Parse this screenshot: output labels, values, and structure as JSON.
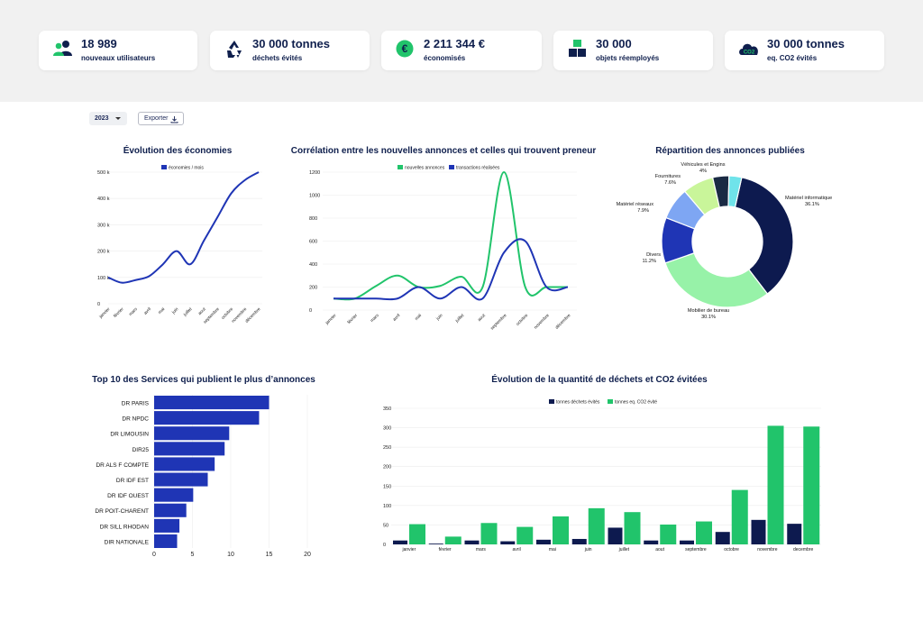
{
  "kpis": [
    {
      "value": "18 989",
      "label": "nouveaux utilisateurs",
      "icon": "users-icon"
    },
    {
      "value": "30 000 tonnes",
      "label": "déchets évités",
      "icon": "recycle-icon"
    },
    {
      "value": "2 211 344 €",
      "label": "économisés",
      "icon": "euro-icon"
    },
    {
      "value": "30 000",
      "label": "objets réemployés",
      "icon": "boxes-icon"
    },
    {
      "value": "30 000 tonnes",
      "label": "eq. CO2 évités",
      "icon": "co2-cloud-icon"
    }
  ],
  "controls": {
    "year": "2023",
    "export_label": "Exporter"
  },
  "colors": {
    "navy": "#0f1f4d",
    "blue": "#1f35b5",
    "green": "#21c46b",
    "dark_navy": "#0d1a4f",
    "light_green": "#97f2a8"
  },
  "chart_data": [
    {
      "type": "line",
      "title": "Évolution des économies",
      "categories": [
        "janvier",
        "février",
        "mars",
        "avril",
        "mai",
        "juin",
        "juillet",
        "aout",
        "septembre",
        "octobre",
        "novembre",
        "décembre"
      ],
      "series": [
        {
          "name": "économies / mois",
          "values": [
            100,
            80,
            90,
            105,
            150,
            200,
            150,
            240,
            330,
            420,
            470,
            500
          ]
        }
      ],
      "ylim": [
        0,
        500
      ],
      "yticks": [
        0,
        100,
        200,
        300,
        400,
        500
      ],
      "ytick_labels": [
        "0",
        "100 k",
        "200 k",
        "300 k",
        "400 k",
        "500 k"
      ]
    },
    {
      "type": "line",
      "title": "Corrélation entre les nouvelles annonces et celles qui trouvent preneur",
      "categories": [
        "janvier",
        "février",
        "mars",
        "avril",
        "mai",
        "juin",
        "juillet",
        "aout",
        "septembre",
        "octobre",
        "novembre",
        "décembre"
      ],
      "series": [
        {
          "name": "nouvelles annonces",
          "values": [
            100,
            100,
            210,
            300,
            200,
            210,
            290,
            200,
            1200,
            200,
            200,
            200
          ]
        },
        {
          "name": "transactions réalisées",
          "values": [
            100,
            100,
            100,
            100,
            200,
            100,
            200,
            100,
            500,
            600,
            200,
            200
          ]
        }
      ],
      "ylim": [
        0,
        1200
      ],
      "yticks": [
        0,
        200,
        400,
        600,
        800,
        1000,
        1200
      ],
      "ytick_labels": [
        "0",
        "200",
        "400",
        "600",
        "800",
        "1000",
        "1200"
      ]
    },
    {
      "type": "pie",
      "title": "Répartition des annonces publiées",
      "slices": [
        {
          "label": "Matériel informatique",
          "value": 36.1,
          "display": "36.1%",
          "color": "#0d1a4f"
        },
        {
          "label": "Mobilier de bureau",
          "value": 30.1,
          "display": "30.1%",
          "color": "#97f2a8"
        },
        {
          "label": "Divers",
          "value": 11.2,
          "display": "11.2%",
          "color": "#1f35b5"
        },
        {
          "label": "Matériel réseaux",
          "value": 7.9,
          "display": "7.9%",
          "color": "#7ea6f3"
        },
        {
          "label": "Fournitures",
          "value": 7.6,
          "display": "7.6%",
          "color": "#c9f59a"
        },
        {
          "label": "Véhicules et Engins",
          "value": 4,
          "display": "4%",
          "color": "#1a2a44"
        },
        {
          "label": "",
          "value": 3.1,
          "display": "",
          "color": "#6fe3ea"
        }
      ]
    },
    {
      "type": "bar",
      "orientation": "horizontal",
      "title": "Top 10 des Services qui publient le plus d’annonces",
      "categories": [
        "DR PARIS",
        "DR NPDC",
        "DR LIMOUSIN",
        "DIR25",
        "DR ALS F COMPTE",
        "DR IDF EST",
        "DR IDF OUEST",
        "DR POIT-CHARENT",
        "DR SILL RHODAN",
        "DIR NATIONALE"
      ],
      "values": [
        15,
        13.7,
        9.8,
        9.2,
        7.9,
        7,
        5.1,
        4.2,
        3.3,
        3
      ],
      "xlim": [
        0,
        20
      ],
      "xticks": [
        0,
        5,
        10,
        15,
        20
      ],
      "xtick_labels": [
        "0",
        "5",
        "10",
        "15",
        "20"
      ]
    },
    {
      "type": "bar",
      "title": "Évolution de la quantité de déchets et CO2 évitées",
      "categories": [
        "janvier",
        "février",
        "mars",
        "avril",
        "mai",
        "juin",
        "juillet",
        "aout",
        "septembre",
        "octobre",
        "novembre",
        "decembre"
      ],
      "series": [
        {
          "name": "tonnes déchets évités",
          "values": [
            10,
            2,
            10,
            8,
            12,
            14,
            43,
            10,
            10,
            32,
            63,
            53
          ]
        },
        {
          "name": "tonnes eq. CO2 évité",
          "values": [
            52,
            20,
            55,
            45,
            72,
            93,
            83,
            51,
            59,
            140,
            305,
            303
          ]
        }
      ],
      "ylim": [
        0,
        350
      ],
      "yticks": [
        0,
        50,
        100,
        150,
        200,
        250,
        300,
        350
      ],
      "ytick_labels": [
        "0",
        "50",
        "100",
        "150",
        "200",
        "250",
        "300",
        "350"
      ]
    }
  ]
}
